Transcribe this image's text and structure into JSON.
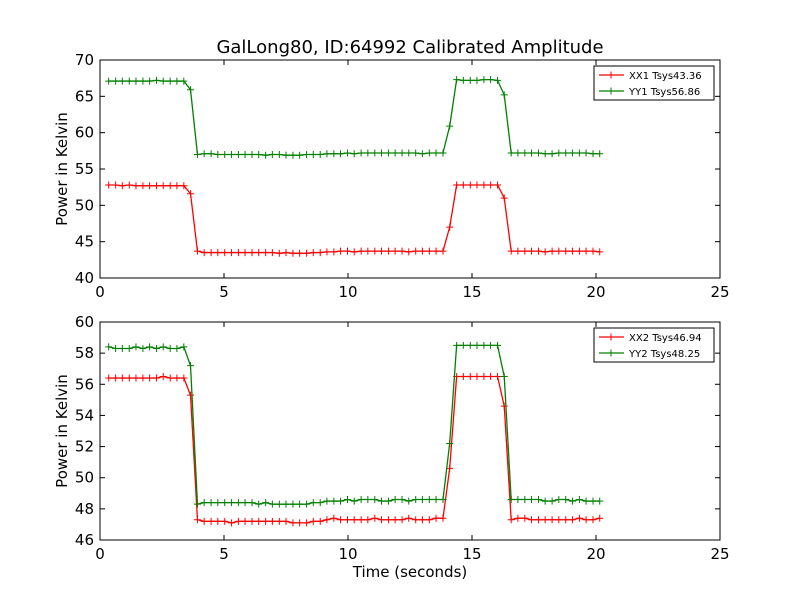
{
  "chart_data": [
    {
      "type": "line",
      "title": "GalLong80, ID:64992 Calibrated Amplitude",
      "xlabel": "",
      "ylabel": "Power in Kelvin",
      "xlim": [
        0,
        25
      ],
      "ylim": [
        40,
        70
      ],
      "xticks": [
        0,
        5,
        10,
        15,
        20,
        25
      ],
      "yticks": [
        40,
        45,
        50,
        55,
        60,
        65,
        70
      ],
      "grid": false,
      "legend_position": "top-right",
      "x": [
        0.35,
        0.63,
        0.9,
        1.18,
        1.45,
        1.73,
        2.0,
        2.28,
        2.55,
        2.83,
        3.1,
        3.38,
        3.65,
        3.93,
        4.2,
        4.48,
        4.75,
        5.03,
        5.3,
        5.58,
        5.85,
        6.13,
        6.4,
        6.68,
        6.95,
        7.23,
        7.5,
        7.78,
        8.05,
        8.33,
        8.6,
        8.88,
        9.15,
        9.43,
        9.7,
        9.98,
        10.25,
        10.53,
        10.8,
        11.08,
        11.35,
        11.63,
        11.9,
        12.18,
        12.45,
        12.73,
        13.0,
        13.28,
        13.55,
        13.83,
        14.1,
        14.38,
        14.65,
        14.93,
        15.2,
        15.48,
        15.75,
        16.03,
        16.3,
        16.58,
        16.85,
        17.13,
        17.4,
        17.68,
        17.95,
        18.23,
        18.5,
        18.78,
        19.05,
        19.33,
        19.6,
        19.88,
        20.15
      ],
      "series": [
        {
          "name": "XX1 Tsys43.36",
          "color": "#ff0000",
          "values": [
            52.8,
            52.8,
            52.7,
            52.8,
            52.7,
            52.7,
            52.7,
            52.7,
            52.7,
            52.7,
            52.7,
            52.7,
            51.6,
            43.7,
            43.5,
            43.5,
            43.5,
            43.5,
            43.5,
            43.5,
            43.5,
            43.5,
            43.5,
            43.5,
            43.5,
            43.4,
            43.5,
            43.4,
            43.4,
            43.4,
            43.5,
            43.5,
            43.6,
            43.6,
            43.7,
            43.7,
            43.6,
            43.7,
            43.7,
            43.7,
            43.7,
            43.7,
            43.7,
            43.7,
            43.6,
            43.7,
            43.7,
            43.7,
            43.7,
            43.7,
            47.0,
            52.8,
            52.8,
            52.8,
            52.8,
            52.8,
            52.8,
            52.8,
            51.0,
            43.7,
            43.7,
            43.7,
            43.7,
            43.7,
            43.6,
            43.7,
            43.7,
            43.7,
            43.7,
            43.7,
            43.7,
            43.7,
            43.6
          ]
        },
        {
          "name": "YY1 Tsys56.86",
          "color": "#008000",
          "values": [
            67.1,
            67.1,
            67.1,
            67.1,
            67.1,
            67.1,
            67.1,
            67.2,
            67.1,
            67.1,
            67.1,
            67.1,
            65.9,
            57.0,
            57.1,
            57.1,
            57.0,
            57.0,
            57.0,
            57.0,
            57.0,
            57.0,
            57.0,
            56.9,
            57.0,
            57.0,
            56.9,
            56.9,
            56.9,
            57.0,
            57.0,
            57.0,
            57.1,
            57.1,
            57.1,
            57.2,
            57.1,
            57.2,
            57.2,
            57.2,
            57.2,
            57.2,
            57.2,
            57.2,
            57.2,
            57.2,
            57.1,
            57.2,
            57.2,
            57.2,
            60.9,
            67.3,
            67.2,
            67.2,
            67.2,
            67.3,
            67.3,
            67.2,
            65.2,
            57.2,
            57.2,
            57.2,
            57.2,
            57.2,
            57.1,
            57.1,
            57.2,
            57.2,
            57.2,
            57.2,
            57.2,
            57.1,
            57.1
          ]
        }
      ]
    },
    {
      "type": "line",
      "title": "",
      "xlabel": "Time (seconds)",
      "ylabel": "Power in Kelvin",
      "xlim": [
        0,
        25
      ],
      "ylim": [
        46,
        60
      ],
      "xticks": [
        0,
        5,
        10,
        15,
        20,
        25
      ],
      "yticks": [
        46,
        48,
        50,
        52,
        54,
        56,
        58,
        60
      ],
      "grid": false,
      "legend_position": "top-right",
      "x": [
        0.35,
        0.63,
        0.9,
        1.18,
        1.45,
        1.73,
        2.0,
        2.28,
        2.55,
        2.83,
        3.1,
        3.38,
        3.65,
        3.93,
        4.2,
        4.48,
        4.75,
        5.03,
        5.3,
        5.58,
        5.85,
        6.13,
        6.4,
        6.68,
        6.95,
        7.23,
        7.5,
        7.78,
        8.05,
        8.33,
        8.6,
        8.88,
        9.15,
        9.43,
        9.7,
        9.98,
        10.25,
        10.53,
        10.8,
        11.08,
        11.35,
        11.63,
        11.9,
        12.18,
        12.45,
        12.73,
        13.0,
        13.28,
        13.55,
        13.83,
        14.1,
        14.38,
        14.65,
        14.93,
        15.2,
        15.48,
        15.75,
        16.03,
        16.3,
        16.58,
        16.85,
        17.13,
        17.4,
        17.68,
        17.95,
        18.23,
        18.5,
        18.78,
        19.05,
        19.33,
        19.6,
        19.88,
        20.15
      ],
      "series": [
        {
          "name": "XX2 Tsys46.94",
          "color": "#ff0000",
          "values": [
            56.4,
            56.4,
            56.4,
            56.4,
            56.4,
            56.4,
            56.4,
            56.4,
            56.5,
            56.4,
            56.4,
            56.4,
            55.3,
            47.3,
            47.2,
            47.2,
            47.2,
            47.2,
            47.1,
            47.2,
            47.2,
            47.2,
            47.2,
            47.2,
            47.2,
            47.2,
            47.2,
            47.1,
            47.1,
            47.1,
            47.2,
            47.2,
            47.3,
            47.4,
            47.3,
            47.3,
            47.3,
            47.3,
            47.3,
            47.4,
            47.3,
            47.3,
            47.3,
            47.3,
            47.4,
            47.3,
            47.3,
            47.3,
            47.4,
            47.4,
            50.6,
            56.5,
            56.5,
            56.5,
            56.5,
            56.5,
            56.5,
            56.5,
            54.6,
            47.3,
            47.4,
            47.4,
            47.3,
            47.3,
            47.3,
            47.3,
            47.3,
            47.3,
            47.3,
            47.4,
            47.3,
            47.3,
            47.4
          ]
        },
        {
          "name": "YY2 Tsys48.25",
          "color": "#008000",
          "values": [
            58.4,
            58.3,
            58.3,
            58.3,
            58.4,
            58.3,
            58.4,
            58.3,
            58.4,
            58.3,
            58.3,
            58.4,
            57.2,
            48.3,
            48.4,
            48.4,
            48.4,
            48.4,
            48.4,
            48.4,
            48.4,
            48.4,
            48.3,
            48.4,
            48.3,
            48.3,
            48.3,
            48.3,
            48.3,
            48.3,
            48.4,
            48.4,
            48.5,
            48.5,
            48.5,
            48.6,
            48.5,
            48.6,
            48.6,
            48.6,
            48.5,
            48.5,
            48.6,
            48.6,
            48.5,
            48.6,
            48.6,
            48.6,
            48.6,
            48.6,
            52.2,
            58.5,
            58.5,
            58.5,
            58.5,
            58.5,
            58.5,
            58.5,
            56.5,
            48.6,
            48.6,
            48.6,
            48.6,
            48.6,
            48.5,
            48.5,
            48.6,
            48.6,
            48.5,
            48.6,
            48.5,
            48.5,
            48.5
          ]
        }
      ]
    }
  ]
}
